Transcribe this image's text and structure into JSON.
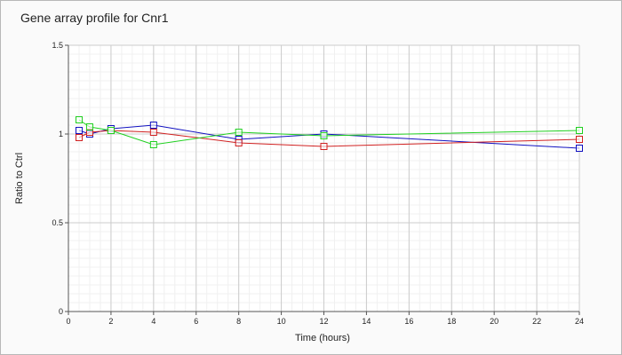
{
  "chart_data": {
    "type": "line",
    "title": "Gene array profile for Cnr1",
    "xlabel": "Time (hours)",
    "ylabel": "Ratio to Ctrl",
    "xlim": [
      0,
      24
    ],
    "ylim": [
      0,
      1.5
    ],
    "x_ticks": [
      "0",
      "2",
      "4",
      "6",
      "8",
      "10",
      "12",
      "14",
      "16",
      "18",
      "20",
      "22",
      "24"
    ],
    "y_ticks": [
      "0",
      "0.5",
      "1",
      "1.5"
    ],
    "grid": true,
    "legend": "none",
    "marker": "open-square",
    "series": [
      {
        "color": "#1010c0",
        "points": [
          [
            0.5,
            1.02
          ],
          [
            1,
            1.0
          ],
          [
            2,
            1.03
          ],
          [
            4,
            1.05
          ],
          [
            8,
            0.97
          ],
          [
            12,
            1.0
          ],
          [
            24,
            0.92
          ]
        ]
      },
      {
        "color": "#d02020",
        "points": [
          [
            0.5,
            0.98
          ],
          [
            1,
            1.01
          ],
          [
            2,
            1.02
          ],
          [
            4,
            1.01
          ],
          [
            8,
            0.95
          ],
          [
            12,
            0.93
          ],
          [
            24,
            0.97
          ]
        ]
      },
      {
        "color": "#20d020",
        "points": [
          [
            0.5,
            1.08
          ],
          [
            1,
            1.04
          ],
          [
            2,
            1.02
          ],
          [
            4,
            0.94
          ],
          [
            8,
            1.01
          ],
          [
            12,
            0.99
          ],
          [
            24,
            1.02
          ]
        ]
      }
    ]
  }
}
